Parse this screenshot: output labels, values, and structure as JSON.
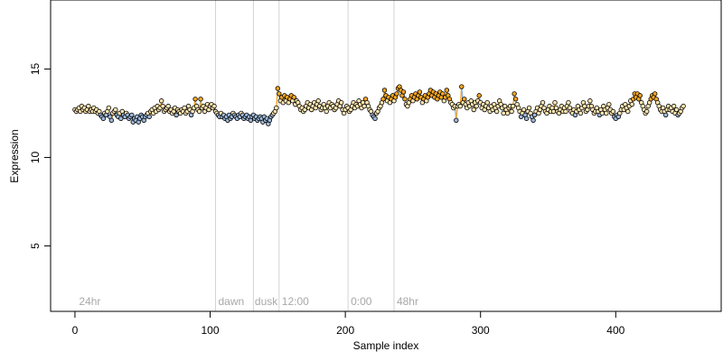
{
  "chart_data": {
    "type": "scatter",
    "title": "",
    "xlabel": "Sample index",
    "ylabel": "Expression",
    "xlim": [
      -18,
      478
    ],
    "ylim": [
      1.3,
      18.9
    ],
    "x_ticks": [
      0,
      100,
      200,
      300,
      400
    ],
    "y_ticks": [
      5,
      10,
      15
    ],
    "phase_boundaries": [
      104,
      132,
      151,
      202,
      236
    ],
    "phase_labels": [
      {
        "text": "24hr",
        "x": 3
      },
      {
        "text": "dawn",
        "x": 106
      },
      {
        "text": "dusk",
        "x": 133
      },
      {
        "text": "12:00",
        "x": 153
      },
      {
        "text": "0:00",
        "x": 204
      },
      {
        "text": "48hr",
        "x": 238
      }
    ],
    "grid": false,
    "legend": "none",
    "colors": {
      "point_fill_orange": "#f5a623",
      "point_fill_light": "#ffe7b3",
      "point_fill_blue": "#9db8d9",
      "point_edge": "#000000",
      "segment_orange": "#f5a623",
      "segment_blue": "#8fb0da",
      "phase_line": "#d3d3d3",
      "phase_label": "#a8a8a8"
    },
    "series": [
      {
        "values": [
          12.7,
          12.6,
          12.7,
          12.8,
          12.6,
          12.9,
          12.7,
          12.8,
          12.6,
          12.7,
          12.9,
          12.6,
          12.7,
          12.6,
          12.8,
          12.6,
          12.7,
          12.5,
          12.6,
          12.4,
          12.3,
          12.2,
          12.5,
          12.4,
          12.6,
          12.8,
          12.3,
          12.1,
          12.5,
          12.6,
          12.7,
          12.4,
          12.3,
          12.5,
          12.2,
          12.6,
          12.4,
          12.3,
          12.5,
          12.4,
          12.2,
          12.3,
          12.4,
          12.0,
          12.2,
          12.1,
          12.3,
          12.0,
          12.2,
          12.4,
          12.3,
          12.1,
          12.3,
          12.4,
          12.5,
          12.3,
          12.6,
          12.7,
          12.5,
          12.8,
          12.6,
          12.9,
          12.7,
          12.8,
          13.2,
          12.9,
          12.6,
          12.7,
          12.8,
          12.9,
          12.6,
          12.7,
          12.5,
          12.6,
          12.8,
          12.4,
          12.7,
          12.6,
          12.5,
          12.7,
          12.6,
          12.8,
          12.5,
          12.6,
          12.9,
          12.7,
          12.4,
          12.6,
          12.8,
          13.3,
          12.9,
          12.7,
          12.6,
          13.3,
          12.8,
          12.9,
          12.6,
          12.8,
          13.0,
          12.7,
          12.9,
          13.0,
          12.8,
          12.9,
          12.6,
          12.5,
          12.4,
          12.3,
          12.5,
          12.3,
          12.4,
          12.2,
          12.3,
          12.1,
          12.4,
          12.2,
          12.3,
          12.5,
          12.4,
          12.3,
          12.2,
          12.4,
          12.3,
          12.5,
          12.4,
          12.2,
          12.3,
          12.4,
          12.2,
          12.3,
          12.1,
          12.3,
          12.4,
          12.2,
          12.3,
          12.1,
          12.2,
          12.3,
          12.2,
          12.0,
          12.3,
          12.1,
          12.2,
          11.9,
          12.1,
          12.3,
          12.4,
          12.5,
          12.6,
          12.8,
          13.9,
          13.6,
          13.2,
          13.4,
          13.1,
          13.5,
          13.2,
          13.4,
          13.1,
          13.3,
          13.5,
          13.2,
          13.4,
          13.0,
          13.2,
          13.1,
          12.9,
          12.7,
          12.8,
          12.6,
          12.7,
          12.9,
          13.1,
          12.8,
          13.0,
          12.7,
          12.9,
          13.1,
          12.8,
          13.0,
          13.2,
          12.9,
          12.7,
          12.8,
          13.0,
          12.8,
          12.6,
          12.9,
          13.1,
          12.8,
          13.0,
          12.9,
          12.7,
          12.8,
          13.0,
          13.2,
          12.9,
          13.1,
          12.7,
          12.5,
          12.7,
          12.9,
          12.8,
          12.6,
          12.7,
          12.9,
          13.1,
          12.8,
          13.0,
          12.9,
          13.2,
          13.0,
          12.8,
          13.1,
          12.9,
          13.3,
          13.1,
          12.9,
          12.7,
          12.6,
          12.4,
          12.3,
          12.2,
          12.5,
          12.6,
          12.8,
          12.9,
          13.1,
          13.3,
          13.8,
          13.5,
          13.2,
          13.4,
          13.1,
          13.3,
          13.5,
          13.2,
          13.4,
          13.6,
          13.9,
          14.0,
          13.8,
          13.5,
          13.7,
          13.3,
          13.0,
          12.9,
          13.1,
          13.3,
          13.5,
          13.2,
          13.4,
          13.6,
          13.3,
          13.5,
          13.7,
          13.4,
          13.1,
          13.3,
          13.5,
          13.2,
          13.4,
          13.6,
          13.8,
          13.5,
          13.7,
          13.4,
          13.6,
          13.3,
          13.5,
          13.7,
          13.4,
          13.6,
          13.2,
          13.4,
          13.8,
          13.5,
          13.3,
          13.1,
          13.0,
          12.8,
          12.9,
          12.1,
          12.9,
          13.0,
          12.9,
          14.0,
          13.1,
          13.3,
          13.0,
          12.8,
          13.1,
          12.9,
          13.2,
          13.0,
          12.7,
          13.1,
          12.9,
          13.2,
          13.5,
          13.1,
          12.8,
          13.0,
          12.7,
          12.9,
          13.1,
          12.8,
          12.6,
          12.9,
          12.7,
          13.0,
          12.8,
          12.6,
          12.9,
          13.2,
          13.0,
          12.8,
          12.5,
          12.9,
          12.7,
          12.5,
          12.8,
          12.9,
          12.6,
          12.9,
          13.6,
          13.3,
          13.0,
          12.8,
          12.6,
          12.3,
          12.5,
          12.7,
          12.4,
          12.2,
          12.6,
          12.8,
          12.5,
          12.3,
          12.1,
          12.4,
          12.6,
          12.8,
          12.5,
          12.7,
          12.9,
          13.1,
          12.8,
          12.6,
          12.5,
          12.7,
          12.9,
          12.6,
          12.8,
          12.6,
          13.1,
          12.8,
          12.6,
          12.5,
          12.7,
          12.9,
          12.6,
          12.8,
          12.6,
          12.9,
          13.1,
          12.8,
          12.6,
          12.5,
          12.7,
          12.4,
          12.6,
          12.9,
          12.7,
          12.5,
          12.8,
          13.1,
          12.9,
          12.6,
          12.7,
          12.9,
          13.2,
          12.9,
          12.7,
          12.5,
          12.6,
          12.8,
          12.6,
          12.4,
          12.7,
          12.5,
          12.9,
          12.7,
          12.5,
          12.8,
          13.0,
          12.7,
          12.5,
          12.6,
          12.3,
          12.2,
          12.4,
          12.3,
          12.5,
          12.7,
          12.9,
          12.7,
          13.0,
          12.8,
          12.6,
          12.9,
          13.2,
          13.0,
          13.3,
          13.6,
          13.4,
          13.6,
          13.3,
          13.5,
          13.1,
          12.9,
          12.7,
          12.5,
          12.6,
          12.9,
          13.1,
          13.3,
          13.5,
          13.4,
          13.6,
          13.3,
          13.1,
          12.9,
          12.7,
          12.6,
          12.8,
          12.6,
          12.4,
          12.7,
          12.9,
          12.7,
          12.8,
          12.6,
          12.9,
          12.5,
          12.7,
          12.4,
          12.5,
          12.6,
          12.8,
          12.9
        ]
      }
    ]
  }
}
